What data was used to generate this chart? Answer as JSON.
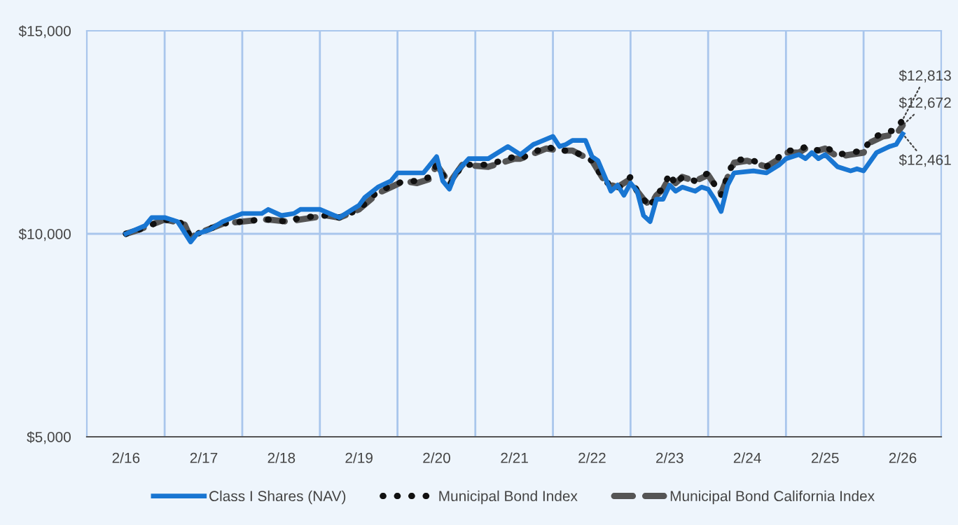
{
  "chart_data": {
    "type": "line",
    "xlim": [
      "2015-08",
      "2026-08"
    ],
    "xticks": [
      {
        "value": "2016-02",
        "label": "2/16"
      },
      {
        "value": "2017-02",
        "label": "2/17"
      },
      {
        "value": "2018-02",
        "label": "2/18"
      },
      {
        "value": "2019-02",
        "label": "2/19"
      },
      {
        "value": "2020-02",
        "label": "2/20"
      },
      {
        "value": "2021-02",
        "label": "2/21"
      },
      {
        "value": "2022-02",
        "label": "2/22"
      },
      {
        "value": "2023-02",
        "label": "2/23"
      },
      {
        "value": "2024-02",
        "label": "2/24"
      },
      {
        "value": "2025-02",
        "label": "2/25"
      },
      {
        "value": "2026-02",
        "label": "2/26"
      }
    ],
    "ylim": [
      5000,
      15000
    ],
    "yticks": [
      {
        "value": 5000,
        "label": "$5,000"
      },
      {
        "value": 10000,
        "label": "$10,000"
      },
      {
        "value": 15000,
        "label": "$15,000"
      }
    ],
    "legend": "bottom",
    "ref_lines": [
      {
        "axis": "y",
        "value": 10000,
        "color": "#a9c6ec"
      },
      {
        "axis": "x",
        "value": "2016-08",
        "color": "#a9c6ec"
      },
      {
        "axis": "x",
        "value": "2017-08",
        "color": "#a9c6ec"
      },
      {
        "axis": "x",
        "value": "2018-08",
        "color": "#a9c6ec"
      },
      {
        "axis": "x",
        "value": "2019-08",
        "color": "#a9c6ec"
      },
      {
        "axis": "x",
        "value": "2020-08",
        "color": "#a9c6ec"
      },
      {
        "axis": "x",
        "value": "2021-08",
        "color": "#a9c6ec"
      },
      {
        "axis": "x",
        "value": "2022-08",
        "color": "#a9c6ec"
      },
      {
        "axis": "x",
        "value": "2023-08",
        "color": "#a9c6ec"
      },
      {
        "axis": "x",
        "value": "2024-08",
        "color": "#a9c6ec"
      },
      {
        "axis": "x",
        "value": "2025-08",
        "color": "#a9c6ec"
      }
    ],
    "series": [
      {
        "name": "Class I Shares (NAV)",
        "color": "#1976d2",
        "line_style": "solid",
        "marker": "none",
        "x": [
          "2016-02",
          "2016-05",
          "2016-06",
          "2016-08",
          "2016-10",
          "2016-12",
          "2017-01",
          "2017-03",
          "2017-05",
          "2017-08",
          "2017-11",
          "2017-12",
          "2018-02",
          "2018-04",
          "2018-05",
          "2018-08",
          "2018-11",
          "2019-01",
          "2019-02",
          "2019-03",
          "2019-05",
          "2019-07",
          "2019-08",
          "2019-10",
          "2019-12",
          "2020-02",
          "2020-03",
          "2020-04",
          "2020-05",
          "2020-07",
          "2020-10",
          "2020-12",
          "2021-01",
          "2021-03",
          "2021-05",
          "2021-08",
          "2021-09",
          "2021-10",
          "2021-11",
          "2022-01",
          "2022-02",
          "2022-03",
          "2022-05",
          "2022-06",
          "2022-07",
          "2022-08",
          "2022-09",
          "2022-10",
          "2022-11",
          "2022-12",
          "2023-01",
          "2023-02",
          "2023-03",
          "2023-04",
          "2023-06",
          "2023-07",
          "2023-08",
          "2023-09",
          "2023-10",
          "2023-11",
          "2023-12",
          "2024-03",
          "2024-05",
          "2024-07",
          "2024-08",
          "2024-10",
          "2024-11",
          "2024-12",
          "2025-01",
          "2025-02",
          "2025-04",
          "2025-06",
          "2025-07",
          "2025-08",
          "2025-10",
          "2025-12",
          "2026-01",
          "2026-02"
        ],
        "values": [
          10000,
          10200,
          10400,
          10400,
          10300,
          9800,
          10000,
          10100,
          10300,
          10500,
          10500,
          10600,
          10450,
          10500,
          10600,
          10600,
          10400,
          10600,
          10700,
          10900,
          11150,
          11300,
          11500,
          11500,
          11500,
          11900,
          11300,
          11100,
          11500,
          11850,
          11850,
          12050,
          12150,
          11950,
          12200,
          12400,
          12150,
          12200,
          12300,
          12300,
          11900,
          11800,
          11050,
          11200,
          10950,
          11250,
          11050,
          10450,
          10300,
          10850,
          10850,
          11200,
          11050,
          11150,
          11050,
          11150,
          11100,
          10850,
          10550,
          11200,
          11500,
          11550,
          11500,
          11700,
          11850,
          11950,
          11850,
          12000,
          11850,
          11950,
          11650,
          11550,
          11600,
          11550,
          12000,
          12150,
          12200,
          12461
        ]
      },
      {
        "name": "Municipal Bond Index",
        "color": "#111111",
        "line_style": "dotted",
        "marker": "none",
        "x": [
          "2016-02",
          "2016-04",
          "2016-08",
          "2016-11",
          "2016-12",
          "2017-01",
          "2017-05",
          "2017-11",
          "2017-12",
          "2018-03",
          "2018-05",
          "2018-09",
          "2018-11",
          "2019-02",
          "2019-05",
          "2019-09",
          "2019-11",
          "2020-01",
          "2020-02",
          "2020-04",
          "2020-06",
          "2020-10",
          "2021-02",
          "2021-03",
          "2021-07",
          "2021-09",
          "2021-11",
          "2022-02",
          "2022-04",
          "2022-05",
          "2022-06",
          "2022-08",
          "2022-09",
          "2022-10",
          "2022-11",
          "2022-12",
          "2023-01",
          "2023-02",
          "2023-03",
          "2023-04",
          "2023-06",
          "2023-08",
          "2023-09",
          "2023-10",
          "2023-11",
          "2023-12",
          "2024-02",
          "2024-03",
          "2024-05",
          "2024-07",
          "2024-08",
          "2024-10",
          "2024-11",
          "2025-01",
          "2025-02",
          "2025-04",
          "2025-06",
          "2025-08",
          "2025-09",
          "2025-11",
          "2026-01",
          "2026-02"
        ],
        "values": [
          10000,
          10100,
          10350,
          10250,
          9900,
          10000,
          10250,
          10350,
          10350,
          10300,
          10400,
          10450,
          10400,
          10600,
          11050,
          11300,
          11300,
          11400,
          11700,
          11200,
          11700,
          11700,
          11900,
          11850,
          12150,
          12050,
          12050,
          11800,
          11300,
          11200,
          11100,
          11400,
          11050,
          10850,
          10650,
          11000,
          11100,
          11500,
          11200,
          11400,
          11300,
          11500,
          11200,
          10950,
          11450,
          11800,
          11850,
          11800,
          11650,
          11900,
          12050,
          12050,
          12150,
          12050,
          12150,
          11950,
          12000,
          12050,
          12300,
          12500,
          12550,
          12813
        ]
      },
      {
        "name": "Municipal Bond California Index",
        "color": "#555555",
        "line_style": "dashed",
        "marker": "none",
        "x": [
          "2016-02",
          "2016-04",
          "2016-08",
          "2016-11",
          "2016-12",
          "2017-01",
          "2017-05",
          "2017-11",
          "2017-12",
          "2018-03",
          "2018-05",
          "2018-09",
          "2018-11",
          "2019-02",
          "2019-05",
          "2019-09",
          "2019-11",
          "2020-01",
          "2020-02",
          "2020-04",
          "2020-06",
          "2020-10",
          "2021-02",
          "2021-03",
          "2021-07",
          "2021-09",
          "2021-11",
          "2022-02",
          "2022-04",
          "2022-05",
          "2022-06",
          "2022-08",
          "2022-09",
          "2022-10",
          "2022-11",
          "2022-12",
          "2023-01",
          "2023-02",
          "2023-03",
          "2023-04",
          "2023-06",
          "2023-08",
          "2023-09",
          "2023-10",
          "2023-11",
          "2023-12",
          "2024-02",
          "2024-03",
          "2024-05",
          "2024-07",
          "2024-08",
          "2024-10",
          "2024-11",
          "2025-01",
          "2025-02",
          "2025-04",
          "2025-06",
          "2025-08",
          "2025-09",
          "2025-11",
          "2026-01",
          "2026-02"
        ],
        "values": [
          10000,
          10100,
          10350,
          10250,
          9900,
          10000,
          10250,
          10350,
          10350,
          10300,
          10350,
          10450,
          10400,
          10600,
          11000,
          11300,
          11250,
          11350,
          11700,
          11250,
          11700,
          11650,
          11850,
          11850,
          12100,
          12050,
          12050,
          11800,
          11300,
          11200,
          11150,
          11350,
          11050,
          10850,
          10700,
          10950,
          11100,
          11400,
          11250,
          11400,
          11300,
          11450,
          11200,
          11000,
          11400,
          11750,
          11800,
          11750,
          11650,
          11850,
          12000,
          12000,
          12100,
          12050,
          12100,
          11900,
          11950,
          12000,
          12250,
          12400,
          12450,
          12672
        ]
      }
    ],
    "annotations": [
      {
        "text": "$12,813",
        "x": "2026-02",
        "y": 12813
      },
      {
        "text": "$12,672",
        "x": "2026-02",
        "y": 12672
      },
      {
        "text": "$12,461",
        "x": "2026-02",
        "y": 12461
      }
    ]
  }
}
